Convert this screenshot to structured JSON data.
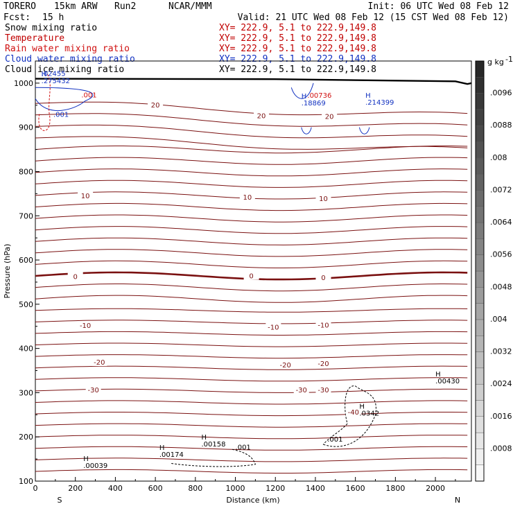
{
  "header": {
    "model": "TORERO",
    "resolution": "15km ARW",
    "run": "Run2",
    "org": "NCAR/MMM",
    "init": "Init: 06 UTC Wed 08 Feb 12",
    "fcst_label": "Fcst:",
    "fcst_value": "15 h",
    "valid": "Valid: 21 UTC Wed 08 Feb 12 (15 CST Wed 08 Feb 12)"
  },
  "fields": [
    {
      "name": "Snow mixing ratio",
      "color": "#000000",
      "xy": "XY= 222.9,  5.1 to 222.9,149.8"
    },
    {
      "name": "Temperature",
      "color": "#c00000",
      "xy": "XY= 222.9,  5.1 to 222.9,149.8"
    },
    {
      "name": "Rain water mixing ratio",
      "color": "#d01010",
      "xy": "XY= 222.9,  5.1 to 222.9,149.8"
    },
    {
      "name": "Cloud water mixing ratio",
      "color": "#1030c0",
      "xy": "XY= 222.9,  5.1 to 222.9,149.8"
    },
    {
      "name": "Cloud ice mixing ratio",
      "color": "#000000",
      "xy": "XY= 222.9,  5.1 to 222.9,149.8"
    }
  ],
  "chart_data": {
    "type": "contour-cross-section",
    "xlabel": "Distance (km)",
    "ylabel": "Pressure (hPa)",
    "xlim": [
      0,
      2180
    ],
    "ylim": [
      1050,
      100
    ],
    "x_ticks": [
      "0",
      "200",
      "400",
      "600",
      "800",
      "1000",
      "1200",
      "1400",
      "1600",
      "1800",
      "2000"
    ],
    "x_tick_values": [
      0,
      200,
      400,
      600,
      800,
      1000,
      1200,
      1400,
      1600,
      1800,
      2000
    ],
    "y_ticks": [
      "100",
      "200",
      "300",
      "400",
      "500",
      "600",
      "700",
      "800",
      "900",
      "1000"
    ],
    "y_tick_values": [
      100,
      200,
      300,
      400,
      500,
      600,
      700,
      800,
      900,
      1000
    ],
    "left_endpoint": "S",
    "right_endpoint": "N",
    "colorbar": {
      "units_label": "g kg",
      "units_exp": "-1",
      "min": 0,
      "max": 0.0104,
      "labels": [
        ".0096",
        ".0088",
        ".008",
        ".0072",
        ".0064",
        ".0056",
        ".0048",
        ".004",
        ".0032",
        ".0024",
        ".0016",
        ".0008"
      ],
      "label_values": [
        0.0096,
        0.0088,
        0.008,
        0.0072,
        0.0064,
        0.0056,
        0.0048,
        0.004,
        0.0032,
        0.0024,
        0.0016,
        0.0008
      ],
      "bins": 26
    },
    "temperature_labels": [
      {
        "text": "-30",
        "x": 290,
        "p": 305
      },
      {
        "text": "-30",
        "x": 1330,
        "p": 305
      },
      {
        "text": "-30",
        "x": 1440,
        "p": 305
      },
      {
        "text": "-20",
        "x": 320,
        "p": 368
      },
      {
        "text": "-20",
        "x": 1250,
        "p": 362
      },
      {
        "text": "-20",
        "x": 1440,
        "p": 365
      },
      {
        "text": "-10",
        "x": 250,
        "p": 451
      },
      {
        "text": "-10",
        "x": 1190,
        "p": 447
      },
      {
        "text": "-10",
        "x": 1440,
        "p": 452
      },
      {
        "text": "-40",
        "x": 1590,
        "p": 255
      },
      {
        "text": "0",
        "x": 200,
        "p": 562
      },
      {
        "text": "0",
        "x": 1080,
        "p": 563
      },
      {
        "text": "0",
        "x": 1440,
        "p": 559
      },
      {
        "text": "10",
        "x": 250,
        "p": 744
      },
      {
        "text": "10",
        "x": 1060,
        "p": 741
      },
      {
        "text": "10",
        "x": 1440,
        "p": 738
      },
      {
        "text": "20",
        "x": 600,
        "p": 950
      },
      {
        "text": "20",
        "x": 1130,
        "p": 925
      },
      {
        "text": "20",
        "x": 1470,
        "p": 924
      }
    ],
    "extrema": [
      {
        "marker": "H",
        "value": ".00039",
        "x": 240,
        "p": 130
      },
      {
        "marker": "H",
        "value": ".00174",
        "x": 620,
        "p": 155
      },
      {
        "marker": "H",
        "value": ".00158",
        "x": 830,
        "p": 178
      },
      {
        "marker": "",
        "value": ".001",
        "x": 1000,
        "p": 171
      },
      {
        "marker": "",
        "value": ".001",
        "x": 1460,
        "p": 189
      },
      {
        "marker": "H",
        "value": ".0342",
        "x": 1620,
        "p": 248
      },
      {
        "marker": "H",
        "value": ".00430",
        "x": 2000,
        "p": 321
      },
      {
        "marker": "",
        "value": ".001",
        "x": 90,
        "p": 924
      },
      {
        "marker": "",
        "value": ".001",
        "x": 230,
        "p": 968
      },
      {
        "marker": "H",
        "value": ".275432",
        "x": 30,
        "p": 1000
      },
      {
        "marker": "",
        "value": ".02455",
        "x": 30,
        "p": 1016
      },
      {
        "marker": "H",
        "value": ".18869",
        "x": 1330,
        "p": 950
      },
      {
        "marker": "",
        "value": ".00736",
        "x": 1360,
        "p": 967
      },
      {
        "marker": "H",
        "value": ".214399",
        "x": 1650,
        "p": 951
      }
    ]
  }
}
